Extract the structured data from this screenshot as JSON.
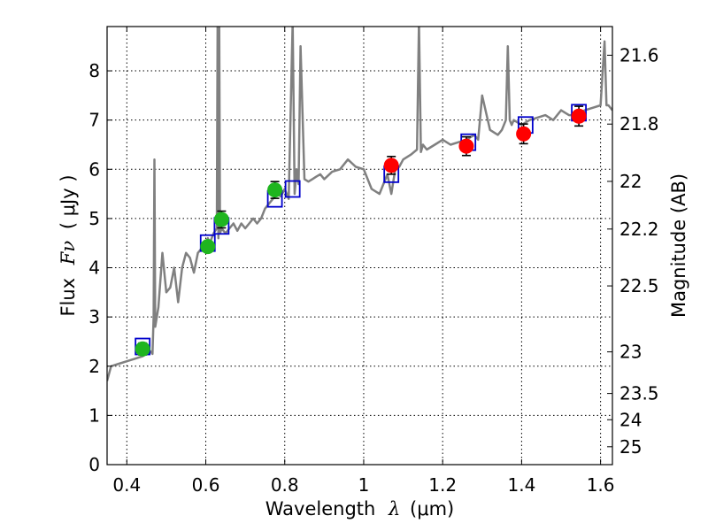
{
  "chart_data": {
    "type": "scatter",
    "x_axis": {
      "label_text": "Wavelength",
      "label_symbol": "λ",
      "label_unit": "(μm)",
      "range": [
        0.35,
        1.63
      ],
      "ticks": [
        0.4,
        0.6,
        0.8,
        1.0,
        1.2,
        1.4,
        1.6
      ],
      "tick_labels": [
        "0.4",
        "0.6",
        "0.8",
        "1",
        "1.2",
        "1.4",
        "1.6"
      ]
    },
    "y_axis": {
      "label_text": "Flux",
      "label_symbol": "Fν",
      "label_unit": "( μJy )",
      "range": [
        0,
        8.9
      ],
      "ticks": [
        0,
        1,
        2,
        3,
        4,
        5,
        6,
        7,
        8
      ],
      "tick_labels": [
        "0",
        "1",
        "2",
        "3",
        "4",
        "5",
        "6",
        "7",
        "8"
      ]
    },
    "y2_axis": {
      "label": "Magnitude (AB)",
      "ticks": [
        21.6,
        21.8,
        22.0,
        22.2,
        22.5,
        23.0,
        23.5,
        24.0,
        25.0
      ],
      "tick_labels": [
        "21.6",
        "21.8",
        "22",
        "22.2",
        "22.5",
        "23",
        "23.5",
        "24",
        "25"
      ]
    },
    "grid": true,
    "series": [
      {
        "kind": "model_spectrum",
        "color": "#808080",
        "x": [
          0.35,
          0.36,
          0.38,
          0.4,
          0.42,
          0.44,
          0.45,
          0.46,
          0.465,
          0.468,
          0.47,
          0.472,
          0.48,
          0.49,
          0.5,
          0.51,
          0.52,
          0.53,
          0.54,
          0.55,
          0.56,
          0.57,
          0.58,
          0.59,
          0.6,
          0.605,
          0.61,
          0.62,
          0.628,
          0.63,
          0.632,
          0.634,
          0.636,
          0.64,
          0.65,
          0.66,
          0.67,
          0.68,
          0.69,
          0.7,
          0.71,
          0.72,
          0.73,
          0.74,
          0.75,
          0.76,
          0.77,
          0.78,
          0.79,
          0.8,
          0.81,
          0.82,
          0.825,
          0.83,
          0.835,
          0.84,
          0.85,
          0.86,
          0.87,
          0.88,
          0.89,
          0.9,
          0.92,
          0.94,
          0.96,
          0.98,
          1.0,
          1.02,
          1.04,
          1.06,
          1.07,
          1.08,
          1.09,
          1.1,
          1.12,
          1.135,
          1.14,
          1.145,
          1.15,
          1.16,
          1.18,
          1.2,
          1.22,
          1.24,
          1.26,
          1.28,
          1.29,
          1.3,
          1.32,
          1.34,
          1.35,
          1.36,
          1.365,
          1.37,
          1.375,
          1.38,
          1.4,
          1.42,
          1.44,
          1.46,
          1.48,
          1.5,
          1.52,
          1.54,
          1.56,
          1.58,
          1.6,
          1.61,
          1.615,
          1.62,
          1.63
        ],
        "y": [
          1.7,
          2.0,
          2.05,
          2.1,
          2.15,
          2.2,
          2.25,
          2.3,
          2.25,
          3.0,
          6.2,
          2.8,
          3.2,
          4.3,
          3.5,
          3.6,
          4.0,
          3.3,
          4.0,
          4.3,
          4.2,
          3.9,
          4.3,
          4.4,
          4.5,
          4.6,
          4.5,
          4.7,
          4.8,
          9.0,
          4.6,
          9.0,
          4.7,
          4.8,
          4.7,
          4.8,
          4.9,
          4.75,
          4.9,
          4.8,
          4.9,
          5.0,
          4.9,
          5.0,
          5.2,
          5.3,
          5.4,
          5.5,
          5.45,
          5.6,
          5.4,
          9.0,
          5.5,
          6.0,
          5.7,
          8.5,
          5.8,
          5.75,
          5.8,
          5.85,
          5.9,
          5.8,
          5.95,
          6.0,
          6.2,
          6.05,
          6.0,
          5.6,
          5.5,
          5.9,
          5.5,
          6.0,
          6.05,
          6.2,
          6.3,
          6.4,
          9.0,
          6.35,
          6.5,
          6.4,
          6.5,
          6.6,
          6.5,
          6.55,
          6.6,
          6.7,
          6.6,
          7.5,
          6.8,
          6.7,
          6.8,
          7.0,
          8.5,
          7.0,
          6.9,
          7.0,
          6.9,
          7.0,
          7.05,
          7.1,
          7.0,
          7.2,
          7.1,
          7.1,
          7.2,
          7.25,
          7.3,
          8.6,
          7.3,
          7.3,
          7.2
        ]
      },
      {
        "kind": "model_photometry",
        "marker": "open-square",
        "color": "#0000cc",
        "x": [
          0.44,
          0.605,
          0.64,
          0.775,
          0.82,
          1.07,
          1.265,
          1.41,
          1.545
        ],
        "y": [
          2.4,
          4.5,
          4.85,
          5.4,
          5.6,
          5.9,
          6.55,
          6.9,
          7.15
        ]
      },
      {
        "kind": "observed_optical",
        "marker": "filled-circle",
        "color": "#1fb51f",
        "x": [
          0.44,
          0.605,
          0.64,
          0.775
        ],
        "y": [
          2.35,
          4.43,
          4.98,
          5.58
        ],
        "yerr": [
          0.12,
          0.1,
          0.17,
          0.17
        ]
      },
      {
        "kind": "observed_infrared",
        "marker": "filled-circle",
        "color": "#ff0000",
        "x": [
          1.07,
          1.26,
          1.405,
          1.545
        ],
        "y": [
          6.08,
          6.47,
          6.72,
          7.08
        ],
        "yerr": [
          0.18,
          0.19,
          0.2,
          0.2
        ]
      }
    ]
  }
}
